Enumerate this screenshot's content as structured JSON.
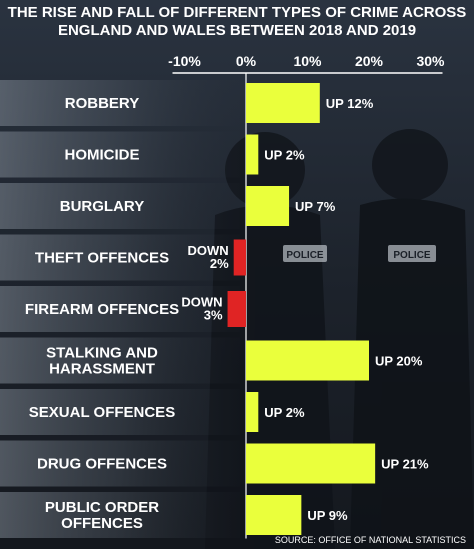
{
  "title_lines": [
    "THE RISE AND FALL OF DIFFERENT TYPES OF CRIME ACROSS",
    "ENGLAND AND WALES BETWEEN 2018 AND 2019"
  ],
  "source": "SOURCE: OFFICE OF NATIONAL STATISTICS",
  "colors": {
    "increase": "#eaff3c",
    "decrease": "#e02424",
    "text": "#ffffff",
    "background": "#1c2129"
  },
  "background_text": {
    "police_left": "POLICE",
    "police_right": "POLICE"
  },
  "chart_data": {
    "type": "bar",
    "orientation": "horizontal",
    "unit": "%",
    "xlim": [
      -10,
      30
    ],
    "x_ticks": [
      -10,
      0,
      10,
      20,
      30
    ],
    "x_tick_labels": [
      "-10%",
      "0%",
      "10%",
      "20%",
      "30%"
    ],
    "grid": false,
    "categories": [
      [
        "ROBBERY"
      ],
      [
        "HOMICIDE"
      ],
      [
        "BURGLARY"
      ],
      [
        "THEFT OFFENCES"
      ],
      [
        "FIREARM OFFENCES"
      ],
      [
        "STALKING AND",
        "HARASSMENT"
      ],
      [
        "SEXUAL OFFENCES"
      ],
      [
        "DRUG OFFENCES"
      ],
      [
        "PUBLIC ORDER",
        "OFFENCES"
      ]
    ],
    "values": [
      12,
      2,
      7,
      -2,
      -3,
      20,
      2,
      21,
      9
    ],
    "data_labels": [
      [
        "UP 12%"
      ],
      [
        "UP 2%"
      ],
      [
        "UP 7%"
      ],
      [
        "DOWN",
        "2%"
      ],
      [
        "DOWN",
        "3%"
      ],
      [
        "UP 20%"
      ],
      [
        "UP 2%"
      ],
      [
        "UP 21%"
      ],
      [
        "UP 9%"
      ]
    ]
  }
}
